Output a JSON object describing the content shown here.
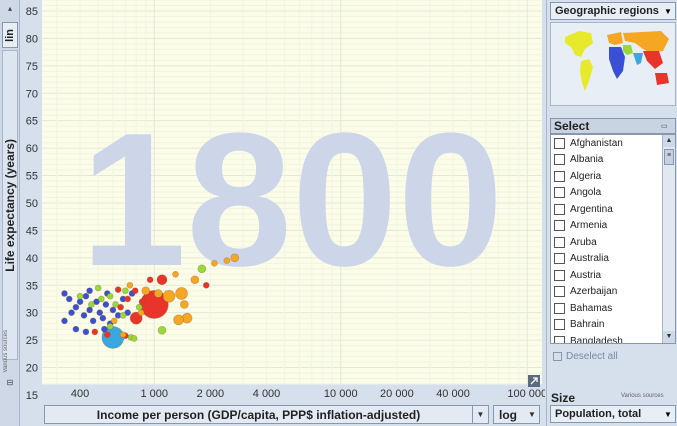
{
  "y_axis": {
    "scale_label": "lin",
    "label": "Life expectancy (years)",
    "source_note": "Various sources",
    "ticks": [
      "15",
      "20",
      "25",
      "30",
      "35",
      "40",
      "45",
      "50",
      "55",
      "60",
      "65",
      "70",
      "75",
      "80",
      "85"
    ]
  },
  "x_axis": {
    "label": "Income per person (GDP/capita, PPP$ inflation-adjusted)",
    "scale_value": "log",
    "ticks": [
      "400",
      "1 000",
      "2 000",
      "4 000",
      "10 000",
      "20 000",
      "40 000",
      "100 000"
    ]
  },
  "year_watermark": "1800",
  "colors": {
    "plot_bg": "#fbfde9",
    "year_text": "#ccd6e8",
    "asia": "#e8342a",
    "europe": "#f5a623",
    "africa": "#3a4fd6",
    "americas": "#9ad83a",
    "south_asia": "#3aa7e0"
  },
  "regions": {
    "selector_value": "Geographic regions"
  },
  "select_panel": {
    "title": "Select",
    "countries": [
      "Afghanistan",
      "Albania",
      "Algeria",
      "Angola",
      "Argentina",
      "Armenia",
      "Aruba",
      "Australia",
      "Austria",
      "Azerbaijan",
      "Bahamas",
      "Bahrain",
      "Bangladesh"
    ],
    "deselect_label": "Deselect all"
  },
  "size_panel": {
    "title": "Size",
    "source_note": "Various sources",
    "value": "Population, total"
  },
  "chart_data": {
    "type": "scatter",
    "title": "1800",
    "xlabel": "Income per person (GDP/capita, PPP$ inflation-adjusted)",
    "ylabel": "Life expectancy (years)",
    "x_scale": "log",
    "xlim": [
      250,
      120000
    ],
    "ylim": [
      17,
      87
    ],
    "points": [
      {
        "x": 1000,
        "y": 31.5,
        "size": 14,
        "color": "#e8342a"
      },
      {
        "x": 600,
        "y": 25.5,
        "size": 11,
        "color": "#3aa7e0"
      },
      {
        "x": 800,
        "y": 29,
        "size": 6,
        "color": "#e8342a"
      },
      {
        "x": 1200,
        "y": 33,
        "size": 6,
        "color": "#f5a623"
      },
      {
        "x": 1400,
        "y": 33.5,
        "size": 6,
        "color": "#f5a623"
      },
      {
        "x": 1500,
        "y": 29,
        "size": 5,
        "color": "#f5a623"
      },
      {
        "x": 1350,
        "y": 28.7,
        "size": 5,
        "color": "#f5a623"
      },
      {
        "x": 1450,
        "y": 31.5,
        "size": 4,
        "color": "#f5a623"
      },
      {
        "x": 1100,
        "y": 36,
        "size": 5,
        "color": "#e8342a"
      },
      {
        "x": 1650,
        "y": 36,
        "size": 4,
        "color": "#f5a623"
      },
      {
        "x": 1800,
        "y": 38,
        "size": 4,
        "color": "#9ad83a"
      },
      {
        "x": 2100,
        "y": 39,
        "size": 3,
        "color": "#f5a623"
      },
      {
        "x": 2450,
        "y": 39.5,
        "size": 3,
        "color": "#f5a623"
      },
      {
        "x": 2700,
        "y": 40,
        "size": 4,
        "color": "#f5a623"
      },
      {
        "x": 900,
        "y": 34,
        "size": 4,
        "color": "#f5a623"
      },
      {
        "x": 950,
        "y": 36,
        "size": 3,
        "color": "#e8342a"
      },
      {
        "x": 1050,
        "y": 33.5,
        "size": 4,
        "color": "#f5a623"
      },
      {
        "x": 850,
        "y": 30,
        "size": 3,
        "color": "#f5a623"
      },
      {
        "x": 1100,
        "y": 26.8,
        "size": 4,
        "color": "#9ad83a"
      },
      {
        "x": 1300,
        "y": 37,
        "size": 3,
        "color": "#f5a623"
      },
      {
        "x": 1900,
        "y": 35,
        "size": 3,
        "color": "#e8342a"
      },
      {
        "x": 330,
        "y": 33.5,
        "size": 3,
        "color": "#3a4fd6"
      },
      {
        "x": 350,
        "y": 32.5,
        "size": 3,
        "color": "#3a4fd6"
      },
      {
        "x": 360,
        "y": 30,
        "size": 3,
        "color": "#3a4fd6"
      },
      {
        "x": 380,
        "y": 31,
        "size": 3,
        "color": "#3a4fd6"
      },
      {
        "x": 400,
        "y": 32,
        "size": 3,
        "color": "#3a4fd6"
      },
      {
        "x": 420,
        "y": 29.5,
        "size": 3,
        "color": "#3a4fd6"
      },
      {
        "x": 430,
        "y": 33,
        "size": 3,
        "color": "#3a4fd6"
      },
      {
        "x": 450,
        "y": 30.5,
        "size": 3,
        "color": "#3a4fd6"
      },
      {
        "x": 470,
        "y": 28.5,
        "size": 3,
        "color": "#3a4fd6"
      },
      {
        "x": 490,
        "y": 32,
        "size": 3,
        "color": "#3a4fd6"
      },
      {
        "x": 510,
        "y": 30,
        "size": 3,
        "color": "#3a4fd6"
      },
      {
        "x": 530,
        "y": 29,
        "size": 3,
        "color": "#3a4fd6"
      },
      {
        "x": 550,
        "y": 31.5,
        "size": 3,
        "color": "#3a4fd6"
      },
      {
        "x": 580,
        "y": 28,
        "size": 3,
        "color": "#3a4fd6"
      },
      {
        "x": 600,
        "y": 30.5,
        "size": 3,
        "color": "#3a4fd6"
      },
      {
        "x": 640,
        "y": 29.5,
        "size": 3,
        "color": "#3a4fd6"
      },
      {
        "x": 680,
        "y": 32.5,
        "size": 3,
        "color": "#3a4fd6"
      },
      {
        "x": 380,
        "y": 27,
        "size": 3,
        "color": "#3a4fd6"
      },
      {
        "x": 330,
        "y": 28.5,
        "size": 3,
        "color": "#3a4fd6"
      },
      {
        "x": 450,
        "y": 34,
        "size": 3,
        "color": "#3a4fd6"
      },
      {
        "x": 540,
        "y": 27,
        "size": 3,
        "color": "#3a4fd6"
      },
      {
        "x": 430,
        "y": 26.5,
        "size": 3,
        "color": "#3a4fd6"
      },
      {
        "x": 720,
        "y": 30,
        "size": 3,
        "color": "#3a4fd6"
      },
      {
        "x": 760,
        "y": 33.5,
        "size": 3,
        "color": "#3a4fd6"
      },
      {
        "x": 560,
        "y": 33.5,
        "size": 3,
        "color": "#3a4fd6"
      },
      {
        "x": 460,
        "y": 31.5,
        "size": 3,
        "color": "#9ad83a"
      },
      {
        "x": 520,
        "y": 32.5,
        "size": 3,
        "color": "#9ad83a"
      },
      {
        "x": 580,
        "y": 33,
        "size": 3,
        "color": "#9ad83a"
      },
      {
        "x": 620,
        "y": 31.5,
        "size": 3,
        "color": "#9ad83a"
      },
      {
        "x": 700,
        "y": 34,
        "size": 3,
        "color": "#9ad83a"
      },
      {
        "x": 750,
        "y": 25.5,
        "size": 3,
        "color": "#9ad83a"
      },
      {
        "x": 780,
        "y": 25.3,
        "size": 3,
        "color": "#9ad83a"
      },
      {
        "x": 830,
        "y": 31,
        "size": 3,
        "color": "#9ad83a"
      },
      {
        "x": 680,
        "y": 29.5,
        "size": 3,
        "color": "#9ad83a"
      },
      {
        "x": 400,
        "y": 33,
        "size": 3,
        "color": "#9ad83a"
      },
      {
        "x": 500,
        "y": 34.5,
        "size": 3,
        "color": "#9ad83a"
      },
      {
        "x": 580,
        "y": 27.5,
        "size": 3,
        "color": "#9ad83a"
      },
      {
        "x": 660,
        "y": 31,
        "size": 3,
        "color": "#e8342a"
      },
      {
        "x": 720,
        "y": 32.5,
        "size": 3,
        "color": "#e8342a"
      },
      {
        "x": 790,
        "y": 34,
        "size": 3,
        "color": "#e8342a"
      },
      {
        "x": 560,
        "y": 26,
        "size": 3,
        "color": "#e8342a"
      },
      {
        "x": 700,
        "y": 25.8,
        "size": 3,
        "color": "#e8342a"
      },
      {
        "x": 640,
        "y": 34.2,
        "size": 3,
        "color": "#e8342a"
      },
      {
        "x": 480,
        "y": 26.5,
        "size": 3,
        "color": "#e8342a"
      },
      {
        "x": 860,
        "y": 32,
        "size": 3,
        "color": "#e8342a"
      },
      {
        "x": 610,
        "y": 28.5,
        "size": 3,
        "color": "#f5a623"
      },
      {
        "x": 740,
        "y": 35,
        "size": 3,
        "color": "#f5a623"
      },
      {
        "x": 680,
        "y": 26,
        "size": 3,
        "color": "#f5a623"
      }
    ]
  }
}
